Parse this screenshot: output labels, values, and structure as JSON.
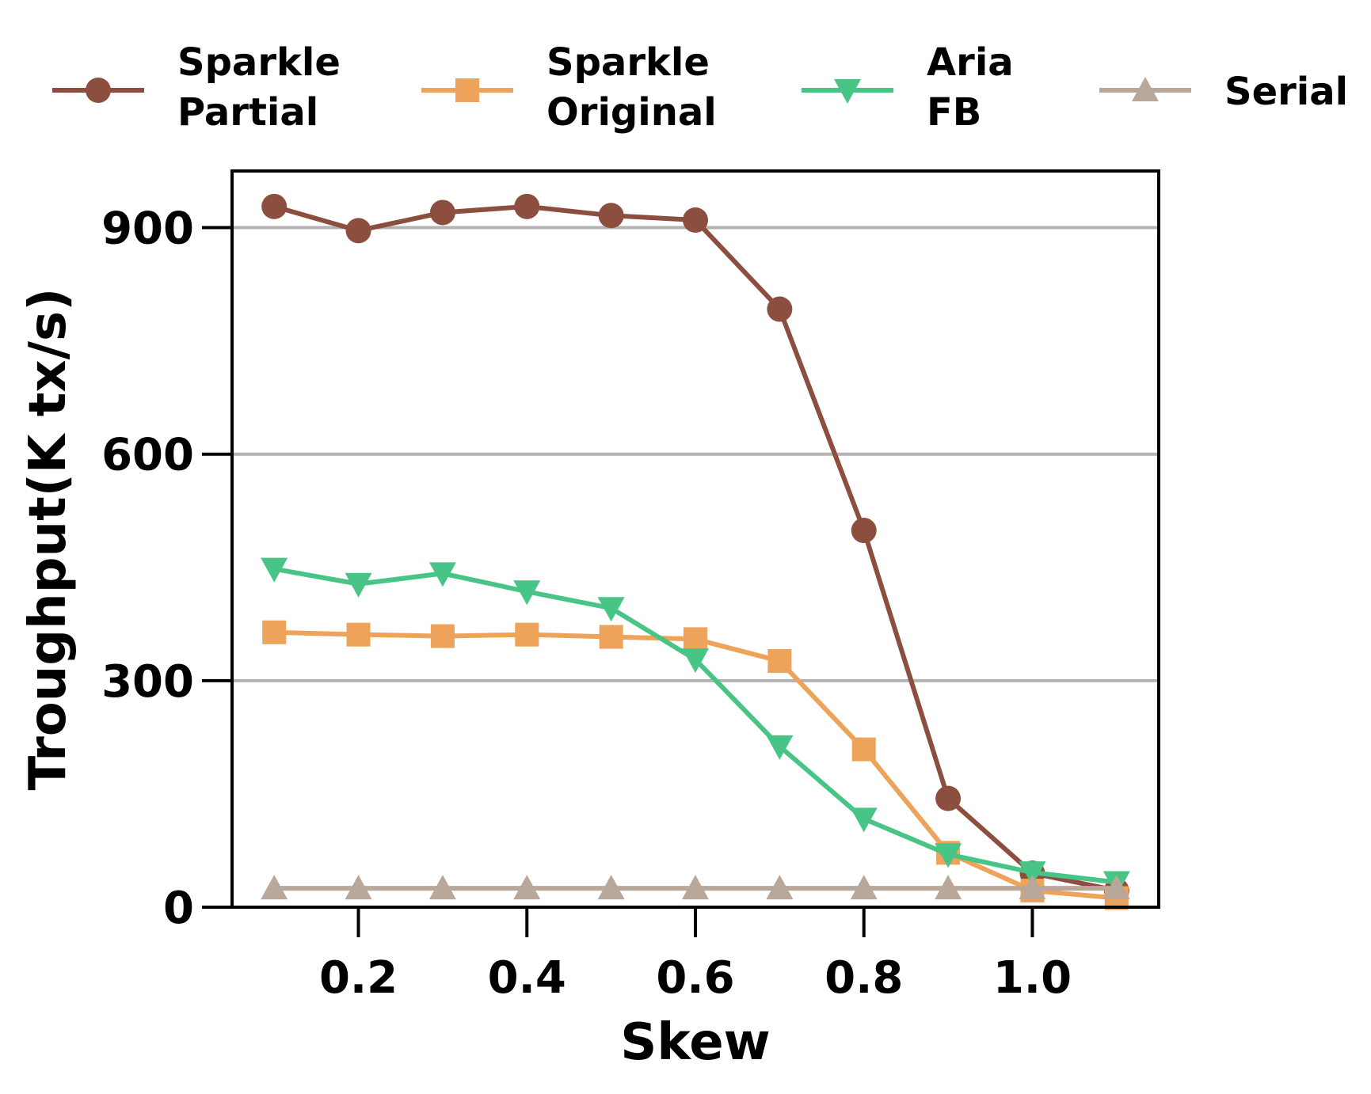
{
  "chart_data": {
    "type": "line",
    "title": "",
    "xlabel": "Skew",
    "ylabel": "Troughput(K tx/s)",
    "xlim": [
      0.05,
      1.15
    ],
    "ylim": [
      0,
      975
    ],
    "xticks": [
      0.2,
      0.4,
      0.6,
      0.8,
      1.0
    ],
    "xtick_labels": [
      "0.2",
      "0.4",
      "0.6",
      "0.8",
      "1.0"
    ],
    "yticks": [
      0,
      300,
      600,
      900
    ],
    "ytick_labels": [
      "0",
      "300",
      "600",
      "900"
    ],
    "grid": "horizontal",
    "legend_position": "top",
    "x": [
      0.1,
      0.2,
      0.3,
      0.4,
      0.5,
      0.6,
      0.7,
      0.8,
      0.9,
      1.0,
      1.1
    ],
    "series": [
      {
        "name": [
          "Sparkle",
          "Partial"
        ],
        "color": "#8c4f3f",
        "marker": "circle",
        "values": [
          928,
          896,
          920,
          928,
          916,
          910,
          792,
          499,
          144,
          45,
          22
        ]
      },
      {
        "name": [
          "Sparkle",
          "Original"
        ],
        "color": "#eda359",
        "marker": "square",
        "values": [
          364,
          361,
          359,
          361,
          358,
          355,
          326,
          209,
          72,
          22,
          12
        ]
      },
      {
        "name": [
          "Aria",
          "FB"
        ],
        "color": "#48c586",
        "marker": "triangle-down",
        "values": [
          448,
          428,
          442,
          418,
          396,
          328,
          213,
          117,
          70,
          46,
          33
        ]
      },
      {
        "name": [
          "Serial"
        ],
        "color": "#b9a89a",
        "marker": "triangle-up",
        "values": [
          25,
          25,
          25,
          25,
          25,
          25,
          25,
          25,
          25,
          25,
          25
        ]
      }
    ]
  }
}
